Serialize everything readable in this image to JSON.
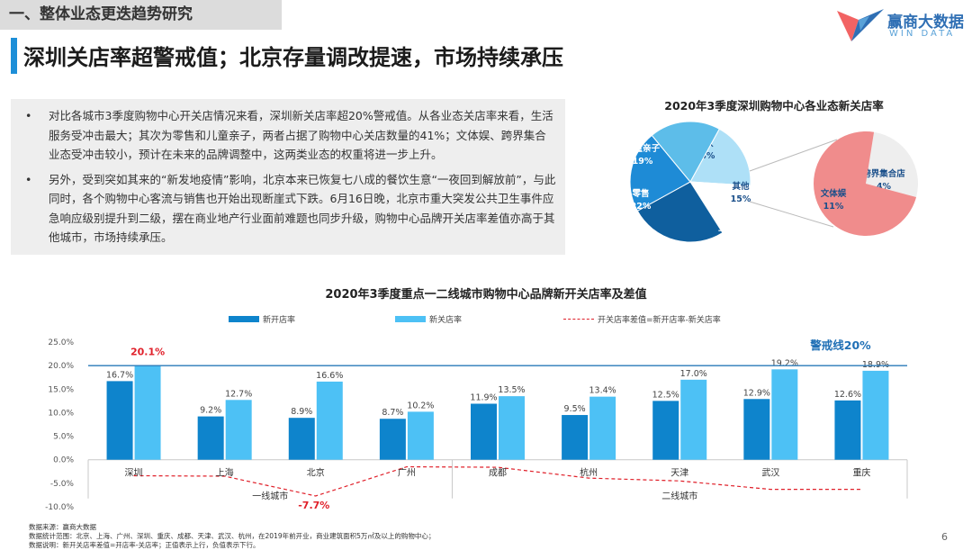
{
  "header": {
    "section_tag": "一、整体业态更迭趋势研究",
    "logo_name": "赢商大数据",
    "logo_sub": "WIN DATA",
    "title": "深圳关店率超警戒值；北京存量调改提速，市场持续承压"
  },
  "bullets": [
    {
      "dot": "•",
      "text": "对比各城市3季度购物中心开关店情况来看，深圳新关店率超20%警戒值。从各业态关店率来看，生活服务受冲击最大；其次为零售和儿童亲子，两者占据了购物中心关店数量的41%；文体娱、跨界集合业态受冲击较小，预计在未来的品牌调整中，这两类业态的权重将进一步上升。"
    },
    {
      "dot": "•",
      "text": "另外，受到突如其来的“新发地疫情”影响，北京本来已恢复七八成的餐饮生意“一夜回到解放前”，与此同时，各个购物中心客流与销售也开始出现断崖式下跌。6月16日晚，北京市重大突发公共卫生事件应急响应级别提升到二级，摆在商业地产行业面前难题也同步升级，购物中心品牌开关店率差值亦高于其他城市，市场持续承压。"
    }
  ],
  "pie_title": "2020年3季度深圳购物中心各业态新关店率",
  "chart_title": "2020年3季度重点一二线城市购物中心品牌新开关店率及差值",
  "legend": {
    "open": "新开店率",
    "close": "新关店率",
    "diff": "开关店率差值=新开店率-新关店率"
  },
  "footnotes": [
    "数据来源：赢商大数据",
    "数据统计范围：北京、上海、广州、深圳、重庆、成都、天津、武汉、杭州，在2019年前开业，商业建筑面积5万㎡及以上的购物中心；",
    "数据说明：新开关店率差值=开店率-关店率；正值表示上行，负值表示下行。"
  ],
  "page_number": "6",
  "colors": {
    "open": "#0e84cc",
    "close": "#4dc1f5",
    "diff": "#e0202a",
    "warning_line": "#2a7ab8",
    "warning_text": "#1f6fb5",
    "pie_dark": "#0f5f9e",
    "pie_mid": "#1e8bd6",
    "pie_light": "#5dbde9",
    "pie_pale": "#aee0f7",
    "pie_white": "#ffffff",
    "pie_pink": "#f08c8c",
    "pie_grey": "#eeeeee"
  },
  "chart_data": [
    {
      "type": "bar",
      "title": "2020年3季度重点一二线城市购物中心品牌新开关店率及差值",
      "categories": [
        "深圳",
        "上海",
        "北京",
        "广州",
        "成都",
        "杭州",
        "天津",
        "武汉",
        "重庆"
      ],
      "groups": [
        {
          "label": "一线城市",
          "categories": [
            "深圳",
            "上海",
            "北京",
            "广州"
          ]
        },
        {
          "label": "二线城市",
          "categories": [
            "成都",
            "杭州",
            "天津",
            "武汉",
            "重庆"
          ]
        }
      ],
      "series": [
        {
          "name": "新开店率",
          "values": [
            16.7,
            9.2,
            8.9,
            8.7,
            11.9,
            9.5,
            12.5,
            12.9,
            12.6
          ],
          "labels": [
            "16.7%",
            "9.2%",
            "8.9%",
            "8.7%",
            "11.9%",
            "9.5%",
            "12.5%",
            "12.9%",
            "12.6%"
          ]
        },
        {
          "name": "新关店率",
          "values": [
            20.1,
            12.7,
            16.6,
            10.2,
            13.5,
            13.4,
            17.0,
            19.2,
            18.9
          ],
          "labels": [
            "20.1%",
            "12.7%",
            "16.6%",
            "10.2%",
            "13.5%",
            "13.4%",
            "17.0%",
            "19.2%",
            "18.9%"
          ]
        },
        {
          "name": "开关店率差值=新开店率-新关店率",
          "type": "line",
          "values": [
            -3.4,
            -3.5,
            -7.7,
            -1.5,
            -1.6,
            -3.9,
            -4.5,
            -6.3,
            -6.3
          ]
        }
      ],
      "highlight_labels": [
        {
          "series": 1,
          "index": 0,
          "text": "20.1%"
        },
        {
          "series": 2,
          "index": 2,
          "text": "-7.7%"
        }
      ],
      "reference_line": {
        "value": 20,
        "label": "警戒线20%"
      },
      "yticks": [
        25,
        20,
        15,
        10,
        5,
        0,
        -5,
        -10
      ],
      "ytick_labels": [
        "25.0%",
        "20.0%",
        "15.0%",
        "10.0%",
        "5.0%",
        "0.0%",
        "-5.0%",
        "-10.0%"
      ],
      "ylim": [
        -10,
        25
      ]
    },
    {
      "type": "pie",
      "title": "2020年3季度深圳购物中心各业态新关店率",
      "slices": [
        {
          "name": "餐饮",
          "value": 18,
          "label": "18%",
          "color_key": "pie_pale"
        },
        {
          "name": "其他",
          "value": 15,
          "label": "15%",
          "color_key": "pie_white"
        },
        {
          "name": "生活服务",
          "value": 26,
          "label": "26%",
          "color_key": "pie_dark"
        },
        {
          "name": "零售",
          "value": 22,
          "label": "22%",
          "color_key": "pie_mid"
        },
        {
          "name": "儿童亲子",
          "value": 19,
          "label": "19%",
          "color_key": "pie_light"
        }
      ],
      "breakout": [
        {
          "name": "跨界集合店",
          "value": 4,
          "label": "4%",
          "color_key": "pie_grey"
        },
        {
          "name": "文体娱",
          "value": 11,
          "label": "11%",
          "color_key": "pie_pink"
        }
      ]
    }
  ]
}
